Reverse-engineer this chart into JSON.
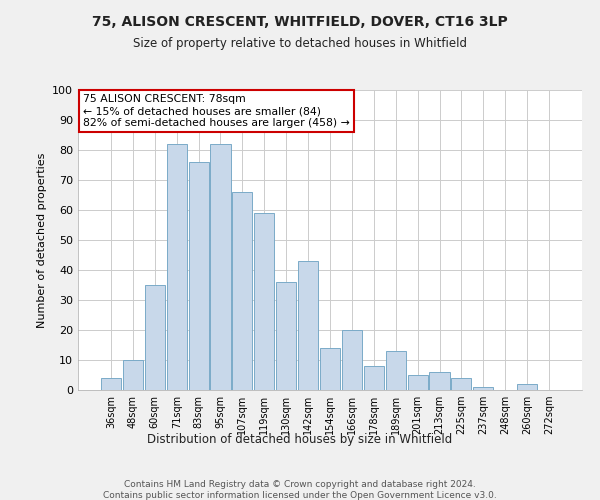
{
  "title": "75, ALISON CRESCENT, WHITFIELD, DOVER, CT16 3LP",
  "subtitle": "Size of property relative to detached houses in Whitfield",
  "xlabel": "Distribution of detached houses by size in Whitfield",
  "ylabel": "Number of detached properties",
  "categories": [
    "36sqm",
    "48sqm",
    "60sqm",
    "71sqm",
    "83sqm",
    "95sqm",
    "107sqm",
    "119sqm",
    "130sqm",
    "142sqm",
    "154sqm",
    "166sqm",
    "178sqm",
    "189sqm",
    "201sqm",
    "213sqm",
    "225sqm",
    "237sqm",
    "248sqm",
    "260sqm",
    "272sqm"
  ],
  "values": [
    4,
    10,
    35,
    82,
    76,
    82,
    66,
    59,
    36,
    43,
    14,
    20,
    8,
    13,
    5,
    6,
    4,
    1,
    0,
    2,
    0
  ],
  "bar_color": "#c8d8ea",
  "bar_edge_color": "#7aaac8",
  "annotation_box_color": "#ffffff",
  "annotation_border_color": "#cc0000",
  "annotation_line1": "75 ALISON CRESCENT: 78sqm",
  "annotation_line2": "← 15% of detached houses are smaller (84)",
  "annotation_line3": "82% of semi-detached houses are larger (458) →",
  "ylim": [
    0,
    100
  ],
  "yticks": [
    0,
    10,
    20,
    30,
    40,
    50,
    60,
    70,
    80,
    90,
    100
  ],
  "footer_line1": "Contains HM Land Registry data © Crown copyright and database right 2024.",
  "footer_line2": "Contains public sector information licensed under the Open Government Licence v3.0.",
  "bg_color": "#f0f0f0",
  "plot_bg_color": "#ffffff",
  "grid_color": "#cccccc"
}
